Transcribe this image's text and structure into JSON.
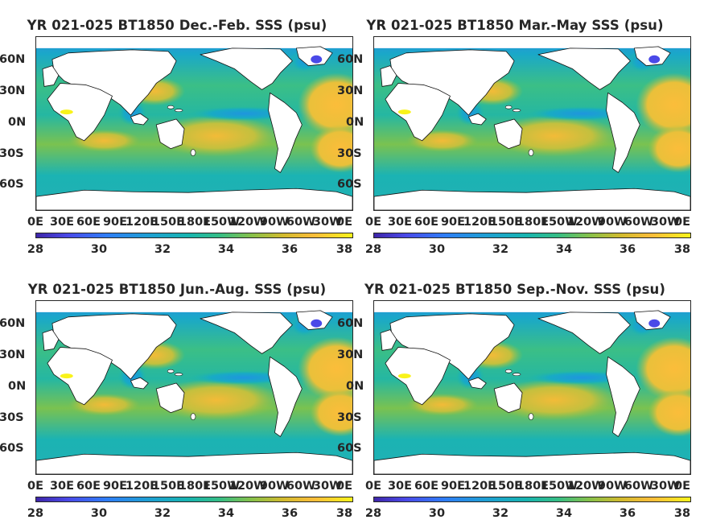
{
  "panels": [
    {
      "title": "YR 021-025 BT1850 Dec.-Feb. SSS (psu)"
    },
    {
      "title": "YR 021-025 BT1850 Mar.-May SSS (psu)"
    },
    {
      "title": "YR 021-025 BT1850 Jun.-Aug. SSS (psu)"
    },
    {
      "title": "YR 021-025 BT1850 Sep.-Nov. SSS (psu)"
    }
  ],
  "lat_labels": [
    "60N",
    "30N",
    "0N",
    "30S",
    "60S"
  ],
  "lon_labels": [
    "0E",
    "30E",
    "60E",
    "90E",
    "120E",
    "150E",
    "180E",
    "150W",
    "120W",
    "90W",
    "60W",
    "30W",
    "0E"
  ],
  "colorbar": {
    "ticks": [
      "28",
      "30",
      "32",
      "34",
      "36",
      "38"
    ],
    "range": [
      28,
      38
    ],
    "colormap": "parula"
  },
  "colors": {
    "land": "#ffffff",
    "fresh": "#3e26a8",
    "ocean_mid": "#35bd85",
    "salty": "#fbbd3a",
    "very_salty": "#f9f31a"
  }
}
